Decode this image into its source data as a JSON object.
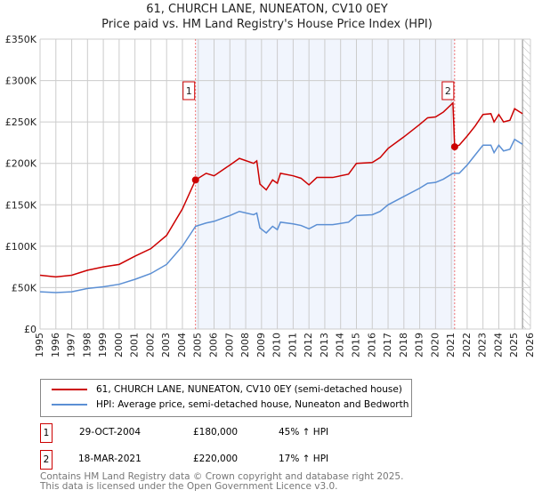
{
  "chart_data": {
    "type": "line",
    "title": "61, CHURCH LANE, NUNEATON, CV10 0EY",
    "subtitle": "Price paid vs. HM Land Registry's House Price Index (HPI)",
    "xlim": [
      1995,
      2026
    ],
    "ylim": [
      0,
      350000
    ],
    "x_ticks": [
      "1995",
      "1996",
      "1997",
      "1998",
      "1999",
      "2000",
      "2001",
      "2002",
      "2003",
      "2004",
      "2005",
      "2006",
      "2007",
      "2008",
      "2009",
      "2010",
      "2011",
      "2012",
      "2013",
      "2014",
      "2015",
      "2016",
      "2017",
      "2018",
      "2019",
      "2020",
      "2021",
      "2022",
      "2023",
      "2024",
      "2025",
      "2026"
    ],
    "y_ticks": [
      {
        "v": 0,
        "label": "£0"
      },
      {
        "v": 50000,
        "label": "£50K"
      },
      {
        "v": 100000,
        "label": "£100K"
      },
      {
        "v": 150000,
        "label": "£150K"
      },
      {
        "v": 200000,
        "label": "£200K"
      },
      {
        "v": 250000,
        "label": "£250K"
      },
      {
        "v": 300000,
        "label": "£300K"
      },
      {
        "v": 350000,
        "label": "£350K"
      }
    ],
    "grid": true,
    "shaded_range": [
      2004.83,
      2021.21
    ],
    "hatched_from": 2025.5,
    "series": [
      {
        "name": "61, CHURCH LANE, NUNEATON, CV10 0EY (semi-detached house)",
        "color": "#cc0000",
        "x": [
          1995,
          1996,
          1997,
          1998,
          1999,
          2000,
          2001,
          2002,
          2003,
          2004,
          2004.83,
          2005.5,
          2006,
          2007,
          2007.6,
          2008.5,
          2008.7,
          2008.9,
          2009.3,
          2009.7,
          2010,
          2010.2,
          2011,
          2011.5,
          2012,
          2012.5,
          2013.5,
          2014.5,
          2015,
          2016,
          2016.5,
          2017,
          2018,
          2019,
          2019.5,
          2020,
          2020.5,
          2021.1,
          2021.21,
          2021.5,
          2022,
          2022.5,
          2023,
          2023.5,
          2023.7,
          2024,
          2024.3,
          2024.7,
          2025,
          2025.5
        ],
        "y": [
          65000,
          63000,
          65000,
          71000,
          75000,
          78000,
          88000,
          97000,
          113000,
          145000,
          180000,
          188000,
          185000,
          198000,
          206000,
          200000,
          203000,
          175000,
          168000,
          180000,
          176000,
          188000,
          185000,
          182000,
          174000,
          183000,
          183000,
          187000,
          200000,
          201000,
          207000,
          218000,
          232000,
          247000,
          255000,
          256000,
          262000,
          273000,
          220000,
          222000,
          233000,
          245000,
          259000,
          260000,
          250000,
          259000,
          250000,
          252000,
          266000,
          260000
        ]
      },
      {
        "name": "HPI: Average price, semi-detached house, Nuneaton and Bedworth",
        "color": "#5b8fd4",
        "x": [
          1995,
          1996,
          1997,
          1998,
          1999,
          2000,
          2001,
          2002,
          2003,
          2004,
          2004.83,
          2005.5,
          2006,
          2007,
          2007.6,
          2008.5,
          2008.7,
          2008.9,
          2009.3,
          2009.7,
          2010,
          2010.2,
          2011,
          2011.5,
          2012,
          2012.5,
          2013.5,
          2014.5,
          2015,
          2016,
          2016.5,
          2017,
          2018,
          2019,
          2019.5,
          2020,
          2020.5,
          2021.1,
          2021.5,
          2022,
          2022.5,
          2023,
          2023.5,
          2023.7,
          2024,
          2024.3,
          2024.7,
          2025,
          2025.5
        ],
        "y": [
          45000,
          44000,
          45000,
          49000,
          51000,
          54000,
          60000,
          67000,
          78000,
          100000,
          124000,
          128000,
          130000,
          137000,
          142000,
          138000,
          140000,
          122000,
          116000,
          124000,
          120000,
          129000,
          127000,
          125000,
          121000,
          126000,
          126000,
          129000,
          137000,
          138000,
          142000,
          150000,
          160000,
          170000,
          176000,
          177000,
          181000,
          188000,
          188000,
          198000,
          210000,
          222000,
          222000,
          213000,
          222000,
          215000,
          217000,
          229000,
          223000
        ]
      }
    ],
    "annotations": [
      {
        "label": "1",
        "x": 2004.83,
        "y": 180000
      },
      {
        "label": "2",
        "x": 2021.21,
        "y": 220000
      }
    ]
  },
  "legend": {
    "red": "61, CHURCH LANE, NUNEATON, CV10 0EY (semi-detached house)",
    "blue": "HPI: Average price, semi-detached house, Nuneaton and Bedworth"
  },
  "sales": [
    {
      "num": "1",
      "date": "29-OCT-2004",
      "price": "£180,000",
      "hpi": "45% ↑ HPI"
    },
    {
      "num": "2",
      "date": "18-MAR-2021",
      "price": "£220,000",
      "hpi": "17% ↑ HPI"
    }
  ],
  "footer": [
    "Contains HM Land Registry data © Crown copyright and database right 2025.",
    "This data is licensed under the Open Government Licence v3.0."
  ]
}
